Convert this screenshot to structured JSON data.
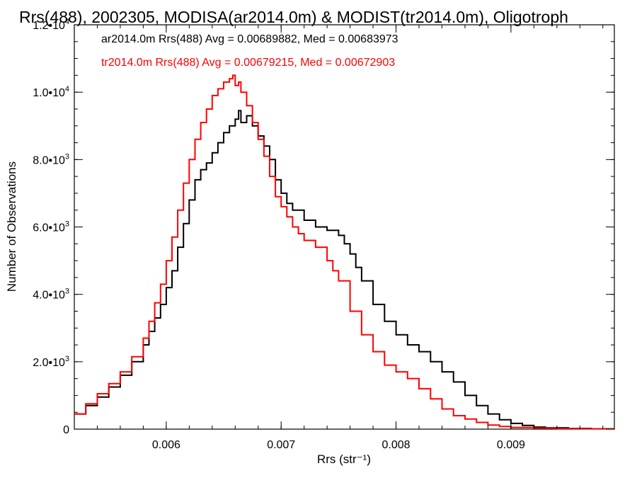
{
  "chart_data": {
    "type": "line",
    "title": "Rrs(488), 2002305, MODISA(ar2014.0m) & MODIST(tr2014.0m), Oligotroph",
    "xlabel": "Rrs (str⁻¹)",
    "ylabel": "Number of Observations",
    "xlim": [
      0.0052,
      0.0099
    ],
    "ylim": [
      0,
      12000
    ],
    "x_ticks": [
      {
        "value": 0.006,
        "label": "0.006"
      },
      {
        "value": 0.007,
        "label": "0.007"
      },
      {
        "value": 0.008,
        "label": "0.008"
      },
      {
        "value": 0.009,
        "label": "0.009"
      }
    ],
    "y_ticks": [
      {
        "value": 0,
        "mantissa": "0",
        "exp": ""
      },
      {
        "value": 2000,
        "mantissa": "2.0•10",
        "exp": "3"
      },
      {
        "value": 4000,
        "mantissa": "4.0•10",
        "exp": "3"
      },
      {
        "value": 6000,
        "mantissa": "6.0•10",
        "exp": "3"
      },
      {
        "value": 8000,
        "mantissa": "8.0•10",
        "exp": "3"
      },
      {
        "value": 10000,
        "mantissa": "1.0•10",
        "exp": "4"
      },
      {
        "value": 12000,
        "mantissa": "1.2•10",
        "exp": "4"
      }
    ],
    "annotations": [
      {
        "text": "ar2014.0m Rrs(488) Avg = 0.00689882, Med = 0.00683973",
        "color": "#000000"
      },
      {
        "text": "tr2014.0m Rrs(488) Avg = 0.00679215, Med = 0.00672903",
        "color": "#ff0000"
      }
    ],
    "grid": false,
    "step": true,
    "series": [
      {
        "color": "#000000",
        "x": [
          0.0052,
          0.0053,
          0.0054,
          0.0055,
          0.0056,
          0.0057,
          0.0058,
          0.00585,
          0.0059,
          0.00595,
          0.006,
          0.00605,
          0.0061,
          0.00615,
          0.0062,
          0.00625,
          0.0063,
          0.00635,
          0.0064,
          0.00645,
          0.0065,
          0.00655,
          0.0066,
          0.00663,
          0.00665,
          0.0067,
          0.00675,
          0.0068,
          0.00685,
          0.0069,
          0.00695,
          0.007,
          0.00705,
          0.0071,
          0.0072,
          0.0073,
          0.0074,
          0.0075,
          0.00755,
          0.0076,
          0.00765,
          0.0077,
          0.0078,
          0.0079,
          0.008,
          0.0081,
          0.0082,
          0.0083,
          0.0084,
          0.0085,
          0.0086,
          0.0087,
          0.0088,
          0.0089,
          0.009,
          0.0091,
          0.0092,
          0.0093,
          0.0095,
          0.0097,
          0.0099
        ],
        "values": [
          450,
          700,
          950,
          1250,
          1600,
          2000,
          2500,
          2900,
          3300,
          3700,
          4200,
          4700,
          5400,
          6100,
          6800,
          7400,
          7700,
          7900,
          8200,
          8500,
          8800,
          9000,
          9200,
          9450,
          9100,
          9300,
          9000,
          8700,
          8400,
          8000,
          7400,
          7000,
          6700,
          6500,
          6200,
          6000,
          5900,
          5750,
          5500,
          5200,
          4800,
          4400,
          3700,
          3200,
          2800,
          2500,
          2300,
          2000,
          1700,
          1400,
          1000,
          700,
          450,
          280,
          170,
          110,
          60,
          40,
          20,
          10,
          5
        ]
      },
      {
        "color": "#ff0000",
        "x": [
          0.0052,
          0.0053,
          0.0054,
          0.0055,
          0.0056,
          0.0057,
          0.0058,
          0.00585,
          0.0059,
          0.00595,
          0.006,
          0.00605,
          0.0061,
          0.00615,
          0.0062,
          0.00625,
          0.0063,
          0.00635,
          0.0064,
          0.00645,
          0.0065,
          0.00655,
          0.00658,
          0.0066,
          0.00663,
          0.00665,
          0.0067,
          0.00675,
          0.0068,
          0.00685,
          0.0069,
          0.00695,
          0.007,
          0.00705,
          0.0071,
          0.00715,
          0.0072,
          0.0073,
          0.0074,
          0.00745,
          0.0075,
          0.0076,
          0.0077,
          0.0078,
          0.0079,
          0.008,
          0.0081,
          0.0082,
          0.0083,
          0.0084,
          0.0085,
          0.0086,
          0.0087,
          0.0088,
          0.0089,
          0.009,
          0.0092,
          0.0094,
          0.0096,
          0.0099
        ],
        "values": [
          450,
          750,
          1050,
          1350,
          1700,
          2150,
          2700,
          3200,
          3750,
          4300,
          5000,
          5700,
          6500,
          7300,
          8000,
          8600,
          9100,
          9500,
          9900,
          10100,
          10300,
          10400,
          10500,
          10200,
          10300,
          10000,
          9600,
          9100,
          8600,
          8100,
          7500,
          6900,
          6600,
          6300,
          6000,
          5800,
          5600,
          5400,
          5000,
          4700,
          4400,
          3500,
          2800,
          2300,
          1900,
          1700,
          1500,
          1200,
          900,
          600,
          400,
          300,
          200,
          120,
          80,
          50,
          30,
          15,
          10,
          5
        ]
      }
    ]
  }
}
